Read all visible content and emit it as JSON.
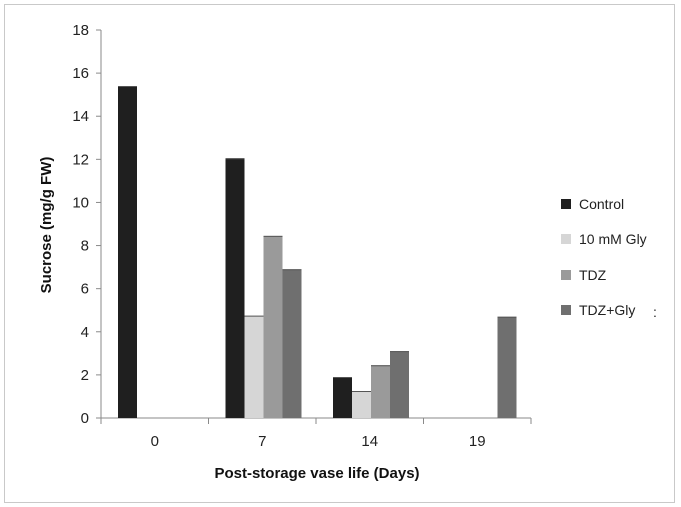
{
  "chart_data": {
    "type": "bar",
    "title": "",
    "xlabel": "Post-storage vase life (Days)",
    "ylabel": "Sucrose (mg/g FW)",
    "ylim": [
      0,
      18
    ],
    "yticks": [
      0,
      2,
      4,
      6,
      8,
      10,
      12,
      14,
      16,
      18
    ],
    "categories": [
      "0",
      "7",
      "14",
      "19"
    ],
    "legend_position": "right",
    "grid": false,
    "series": [
      {
        "name": "Control",
        "color": "#1f1f1f",
        "values": [
          15.4,
          12.05,
          1.9,
          0
        ]
      },
      {
        "name": "10 mM Gly",
        "color": "#d6d6d6",
        "values": [
          0,
          4.75,
          1.25,
          0
        ]
      },
      {
        "name": "TDZ",
        "color": "#9a9a9a",
        "values": [
          0,
          8.45,
          2.45,
          0
        ]
      },
      {
        "name": "TDZ+Gly",
        "color": "#6f6f6f",
        "values": [
          0,
          6.9,
          3.1,
          4.7
        ]
      }
    ],
    "legend_extra_mark": ":"
  }
}
